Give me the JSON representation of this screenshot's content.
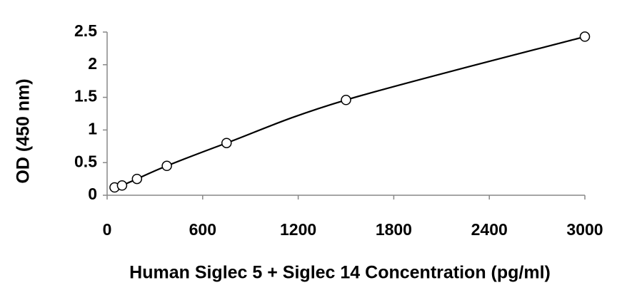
{
  "chart_data": {
    "type": "scatter",
    "x_label": "Human Siglec 5 + Siglec 14 Concentration (pg/ml)",
    "y_label": "OD (450 nm)",
    "x": [
      46.875,
      93.75,
      187.5,
      375,
      750,
      1500,
      3000
    ],
    "values": [
      0.12,
      0.15,
      0.25,
      0.45,
      0.8,
      1.46,
      2.43
    ],
    "color": "#000000",
    "xlim": [
      0,
      3000
    ],
    "ylim": [
      0,
      2.5
    ],
    "xticks": [
      0,
      600,
      1200,
      1800,
      2400,
      3000
    ],
    "yticks": [
      0,
      0.5,
      1,
      1.5,
      2,
      2.5
    ],
    "grid": false
  }
}
